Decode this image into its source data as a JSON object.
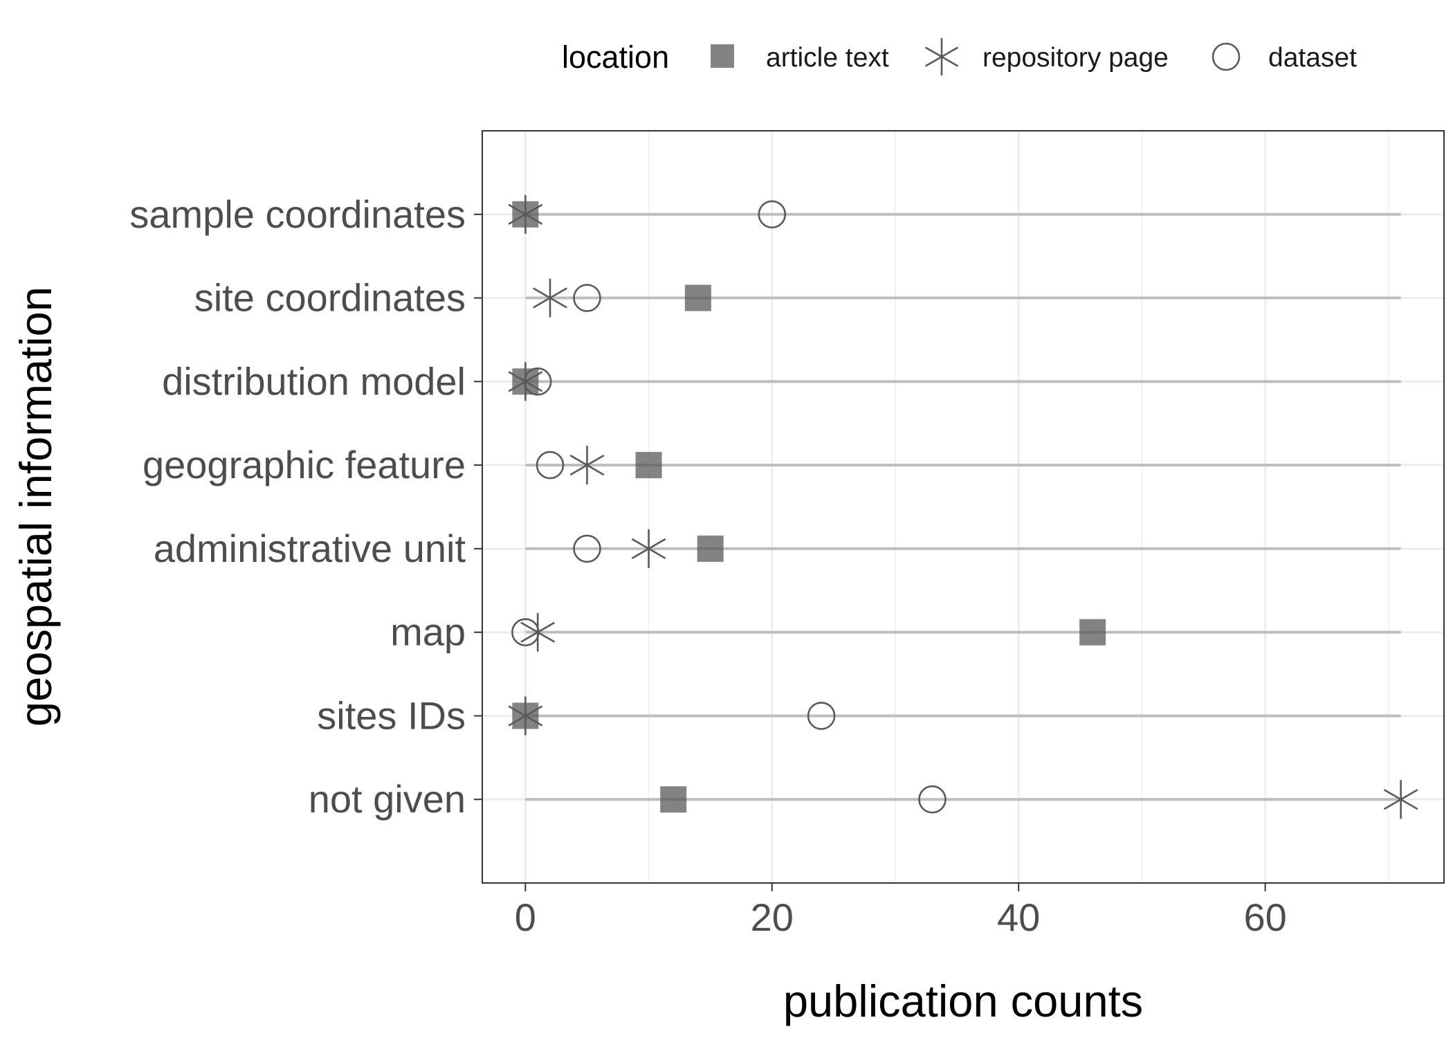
{
  "chart_data": {
    "type": "scatter",
    "title": "",
    "xlabel": "publication counts",
    "ylabel": "geospatial information",
    "xlim": [
      -3.5,
      74.5
    ],
    "xticks": [
      0,
      20,
      40,
      60
    ],
    "tick_labels": [
      "0",
      "20",
      "40",
      "60"
    ],
    "grid": true,
    "legend_position": "top",
    "legend_title": "location",
    "categories": [
      "sample coordinates",
      "site coordinates",
      "distribution model",
      "geographic feature",
      "administrative unit",
      "map",
      "sites IDs",
      "not given"
    ],
    "series": [
      {
        "name": "article text",
        "marker": "filled-square",
        "values": [
          0,
          14,
          0,
          10,
          15,
          46,
          0,
          12
        ]
      },
      {
        "name": "repository page",
        "marker": "asterisk",
        "values": [
          0,
          2,
          0,
          5,
          10,
          1,
          0,
          71
        ]
      },
      {
        "name": "dataset",
        "marker": "open-circle",
        "values": [
          20,
          5,
          1,
          2,
          5,
          0,
          24,
          33
        ]
      }
    ],
    "ranges": [
      [
        0,
        71
      ],
      [
        0,
        71
      ],
      [
        0,
        71
      ],
      [
        0,
        71
      ],
      [
        0,
        71
      ],
      [
        0,
        71
      ],
      [
        0,
        71
      ],
      [
        0,
        71
      ]
    ],
    "colors": {
      "marker": "#595959",
      "range_line": "#bdbdbd",
      "grid": "#ebebeb",
      "panel_border": "#333333"
    }
  }
}
